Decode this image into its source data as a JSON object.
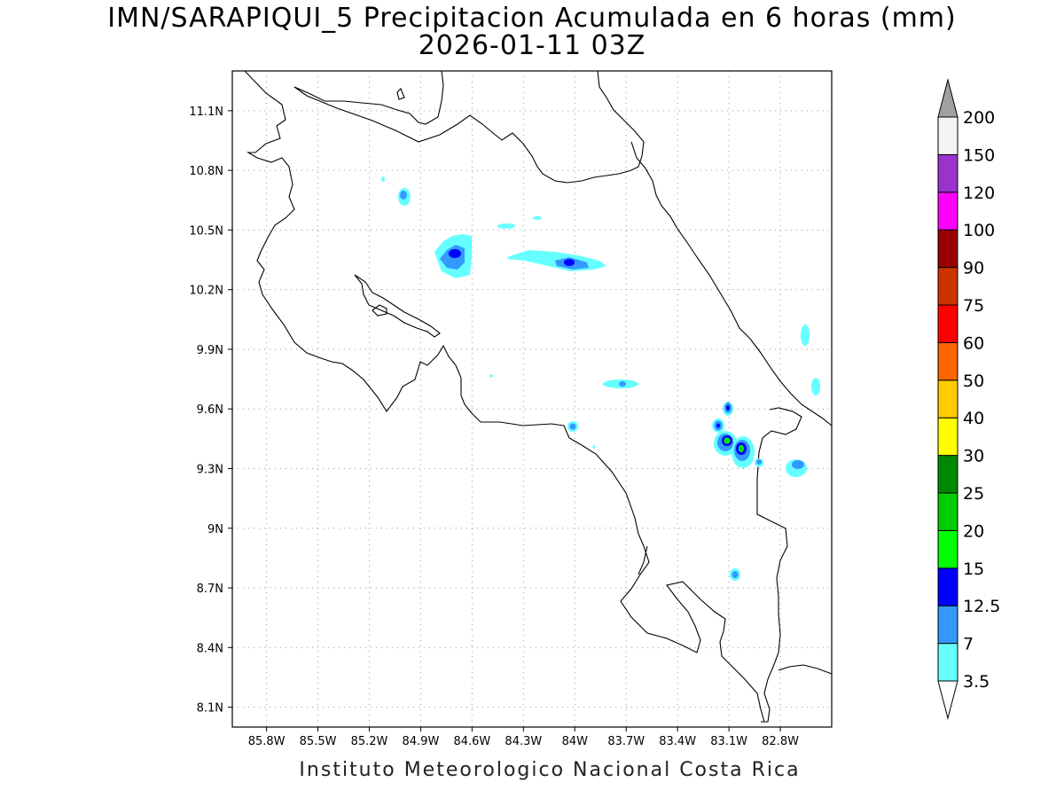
{
  "title": {
    "line1": "IMN/SARAPIQUI_5 Precipitacion Acumulada en 6 horas (mm)",
    "line2": "2026-01-11 03Z"
  },
  "footer": "Instituto Meteorologico Nacional Costa Rica",
  "map": {
    "lon_range": [
      -86.0,
      -82.5
    ],
    "lat_range": [
      8.0,
      11.3
    ],
    "lon_ticks": [
      "85.8W",
      "85.5W",
      "85.2W",
      "84.9W",
      "84.6W",
      "84.3W",
      "84W",
      "83.7W",
      "83.4W",
      "83.1W",
      "82.8W"
    ],
    "lat_ticks": [
      "11.1N",
      "10.8N",
      "10.5N",
      "10.2N",
      "9.9N",
      "9.6N",
      "9.3N",
      "9N",
      "8.7N",
      "8.4N",
      "8.1N"
    ],
    "grid": "dotted"
  },
  "colorbar": {
    "levels": [
      "3.5",
      "7",
      "12.5",
      "15",
      "20",
      "25",
      "30",
      "40",
      "50",
      "60",
      "75",
      "90",
      "100",
      "120",
      "150",
      "200"
    ],
    "colors": [
      "#66ffff",
      "#3399ff",
      "#0000ff",
      "#00ff00",
      "#00cc00",
      "#008800",
      "#ffff00",
      "#ffcc00",
      "#ff6600",
      "#ff0000",
      "#cc3300",
      "#990000",
      "#ff00ff",
      "#9933cc",
      "#f4f4f4"
    ],
    "under_color": "#ffffff",
    "over_color": "#a0a0a0"
  }
}
